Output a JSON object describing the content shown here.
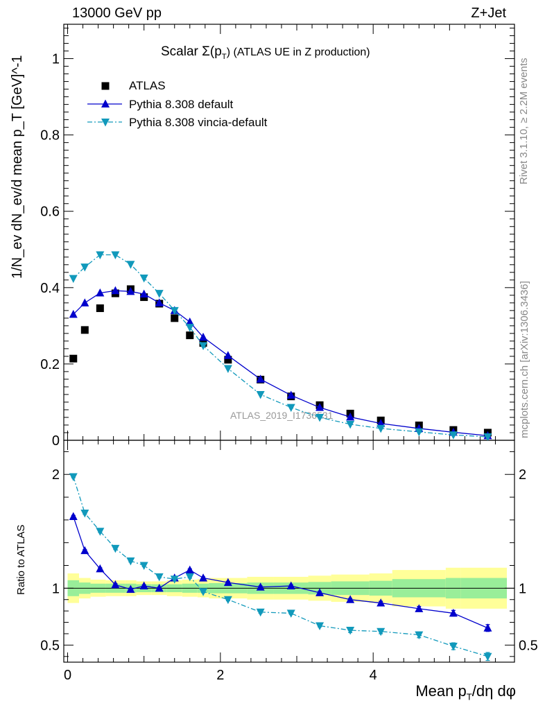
{
  "header": {
    "energy": "13000 GeV pp",
    "process": "Z+Jet"
  },
  "side_labels": {
    "rivet": "Rivet 3.1.10, ≥ 2.2M events",
    "mcplots": "mcplots.cern.ch [arXiv:1306.3436]"
  },
  "watermark": "ATLAS_2019_I1736531",
  "chart_data": [
    {
      "type": "scatter",
      "panel": "main",
      "title_main": "Scalar Σ(p",
      "title_sub": "T",
      "title_tail": ") (ATLAS UE in Z production)",
      "ylabel": "1/N_ev dN_ev/d mean p_T [GeV]^-1",
      "xlim": [
        -0.05,
        5.85
      ],
      "ylim": [
        0,
        1.09
      ],
      "yticks": [
        0,
        0.2,
        0.4,
        0.6,
        0.8,
        1
      ],
      "ytick_labels": [
        "0",
        "0.2",
        "0.4",
        "0.6",
        "0.8",
        "1"
      ],
      "legend_placement": "top-left",
      "series": [
        {
          "name": "ATLAS",
          "style": "square",
          "color": "#000000",
          "x": [
            0.075,
            0.225,
            0.425,
            0.625,
            0.825,
            1.0,
            1.2,
            1.4,
            1.6,
            1.775,
            2.1,
            2.525,
            2.925,
            3.3,
            3.7,
            4.1,
            4.6,
            5.05,
            5.5
          ],
          "y": [
            0.214,
            0.289,
            0.346,
            0.385,
            0.396,
            0.375,
            0.358,
            0.32,
            0.275,
            0.255,
            0.211,
            0.159,
            0.115,
            0.092,
            0.07,
            0.052,
            0.039,
            0.027,
            0.02
          ]
        },
        {
          "name": "Pythia 8.308 default",
          "style": "triangle-up",
          "line": "solid",
          "color": "#0000cc",
          "x": [
            0.075,
            0.225,
            0.425,
            0.625,
            0.825,
            1.0,
            1.2,
            1.4,
            1.6,
            1.775,
            2.1,
            2.525,
            2.925,
            3.3,
            3.7,
            4.1,
            4.6,
            5.05,
            5.5
          ],
          "y": [
            0.33,
            0.36,
            0.386,
            0.392,
            0.39,
            0.383,
            0.36,
            0.34,
            0.31,
            0.27,
            0.222,
            0.16,
            0.118,
            0.086,
            0.061,
            0.044,
            0.031,
            0.021,
            0.012
          ]
        },
        {
          "name": "Pythia 8.308 vincia-default",
          "style": "triangle-down",
          "line": "dashdot",
          "color": "#1199bb",
          "x": [
            0.075,
            0.225,
            0.425,
            0.625,
            0.825,
            1.0,
            1.2,
            1.4,
            1.6,
            1.775,
            2.1,
            2.525,
            2.925,
            3.3,
            3.7,
            4.1,
            4.6,
            5.05,
            5.5
          ],
          "y": [
            0.424,
            0.454,
            0.486,
            0.486,
            0.461,
            0.425,
            0.385,
            0.34,
            0.296,
            0.248,
            0.188,
            0.12,
            0.086,
            0.06,
            0.042,
            0.031,
            0.022,
            0.014,
            0.009
          ]
        }
      ]
    },
    {
      "type": "line",
      "panel": "ratio",
      "ylabel": "Ratio to ATLAS",
      "xlabel_main": "Mean p",
      "xlabel_sub": "T",
      "xlabel_tail": "/dη dφ",
      "xlim": [
        -0.05,
        5.85
      ],
      "ylim": [
        0.35,
        2.3
      ],
      "yticks": [
        0.5,
        1,
        2
      ],
      "ytick_labels": [
        "0.5",
        "1",
        "2"
      ],
      "xticks": [
        0,
        2,
        4
      ],
      "xtick_labels": [
        "0",
        "2",
        "4"
      ],
      "bin_edges": [
        0,
        0.15,
        0.3,
        0.5,
        0.75,
        0.9,
        1.1,
        1.3,
        1.5,
        1.7,
        1.85,
        2.35,
        2.7,
        3.15,
        3.45,
        3.95,
        4.25,
        4.95,
        5.15,
        5.75
      ],
      "band_inner": [
        0.07,
        0.05,
        0.04,
        0.04,
        0.04,
        0.035,
        0.035,
        0.035,
        0.04,
        0.04,
        0.045,
        0.05,
        0.05,
        0.055,
        0.06,
        0.065,
        0.08,
        0.09,
        0.09
      ],
      "band_outer": [
        0.13,
        0.09,
        0.075,
        0.07,
        0.07,
        0.06,
        0.06,
        0.07,
        0.075,
        0.08,
        0.09,
        0.1,
        0.1,
        0.11,
        0.12,
        0.13,
        0.16,
        0.18,
        0.18
      ],
      "series": [
        {
          "name": "Pythia 8.308 default",
          "style": "triangle-up",
          "line": "solid",
          "color": "#0000cc",
          "x": [
            0.075,
            0.225,
            0.425,
            0.625,
            0.825,
            1.0,
            1.2,
            1.4,
            1.6,
            1.775,
            2.1,
            2.525,
            2.925,
            3.3,
            3.7,
            4.1,
            4.6,
            5.05,
            5.5
          ],
          "y": [
            1.63,
            1.33,
            1.17,
            1.03,
            0.99,
            1.02,
            1.0,
            1.09,
            1.16,
            1.09,
            1.05,
            1.01,
            1.02,
            0.96,
            0.9,
            0.87,
            0.82,
            0.78,
            0.65
          ],
          "err": [
            0.01,
            0.01,
            0.01,
            0.01,
            0.01,
            0.01,
            0.01,
            0.01,
            0.01,
            0.01,
            0.01,
            0.01,
            0.01,
            0.01,
            0.01,
            0.015,
            0.02,
            0.025,
            0.03
          ]
        },
        {
          "name": "Pythia 8.308 vincia-default",
          "style": "triangle-down",
          "line": "dashdot",
          "color": "#1199bb",
          "x": [
            0.075,
            0.225,
            0.425,
            0.625,
            0.825,
            1.0,
            1.2,
            1.4,
            1.6,
            1.775,
            2.1,
            2.525,
            2.925,
            3.3,
            3.7,
            4.1,
            4.6,
            5.05,
            5.5
          ],
          "y": [
            1.98,
            1.66,
            1.5,
            1.35,
            1.24,
            1.2,
            1.1,
            1.08,
            1.1,
            0.97,
            0.9,
            0.79,
            0.78,
            0.67,
            0.63,
            0.62,
            0.59,
            0.49,
            0.4
          ],
          "err": [
            0.01,
            0.01,
            0.01,
            0.01,
            0.01,
            0.01,
            0.01,
            0.01,
            0.01,
            0.01,
            0.01,
            0.01,
            0.01,
            0.01,
            0.02,
            0.02,
            0.025,
            0.03,
            0.035
          ]
        }
      ]
    }
  ]
}
